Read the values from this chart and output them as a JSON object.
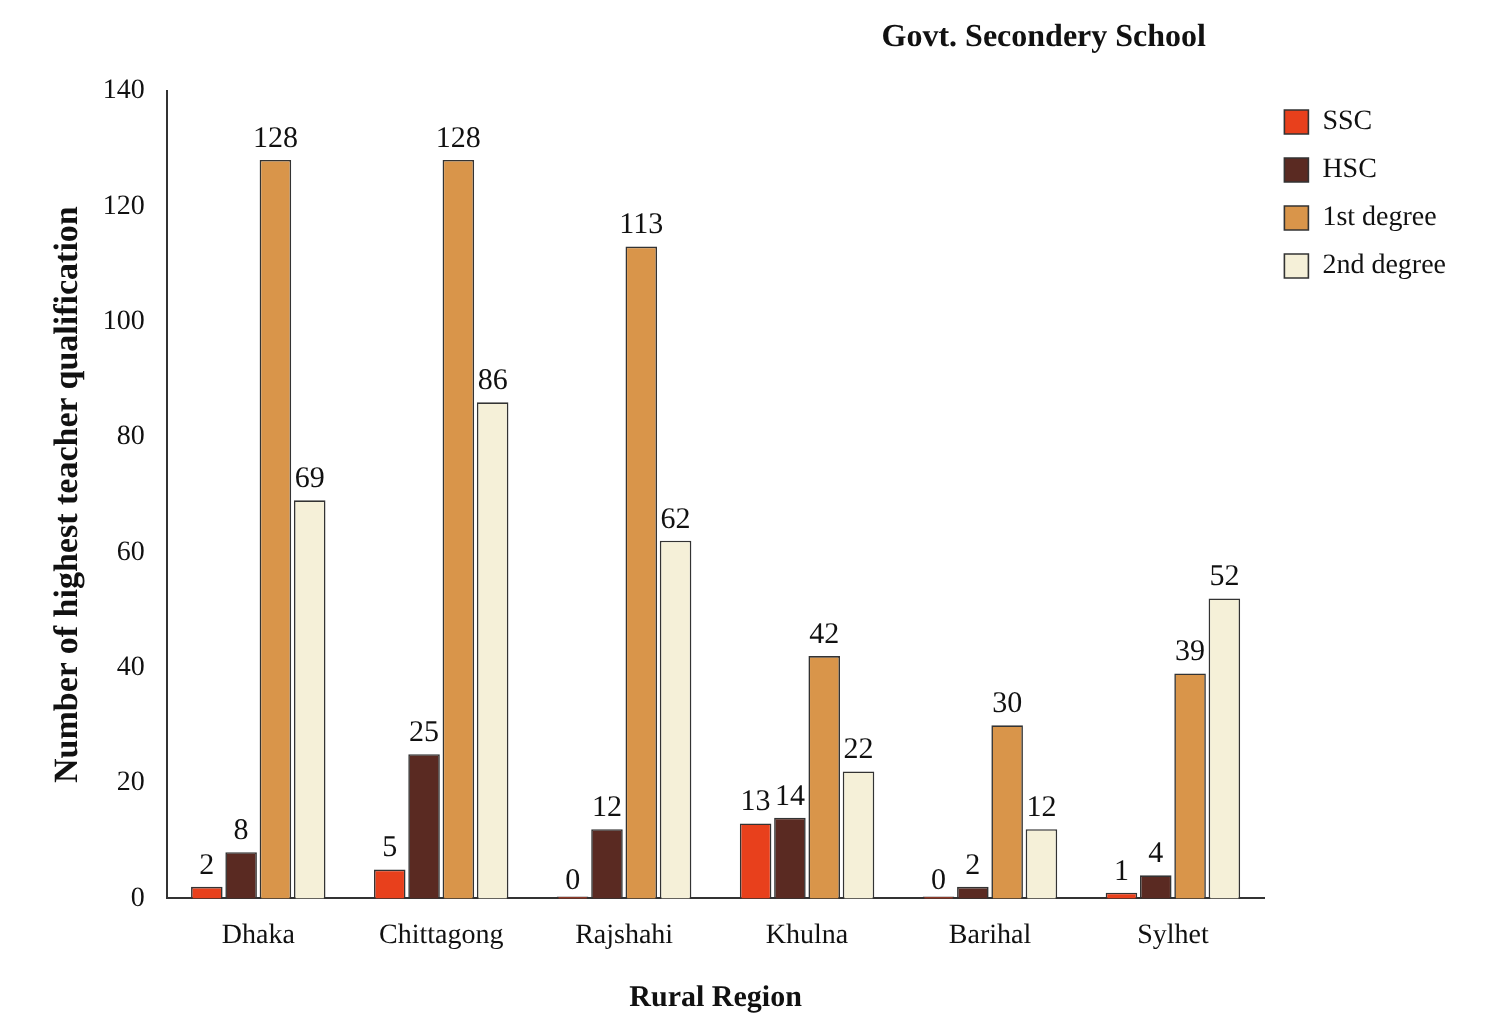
{
  "chart_data": {
    "type": "bar",
    "title": "Govt. Secondery School",
    "xlabel": "Rural Region",
    "ylabel": "Number of highest teacher qualification",
    "categories": [
      "Dhaka",
      "Chittagong",
      "Rajshahi",
      "Khulna",
      "Barihal",
      "Sylhet"
    ],
    "series": [
      {
        "name": "SSC",
        "color": "#e8401c",
        "values": [
          2,
          5,
          0,
          13,
          0,
          1
        ]
      },
      {
        "name": "HSC",
        "color": "#5a2a22",
        "values": [
          8,
          25,
          12,
          14,
          2,
          4
        ]
      },
      {
        "name": "1st degree",
        "color": "#d9954a",
        "values": [
          128,
          128,
          113,
          42,
          30,
          39
        ]
      },
      {
        "name": "2nd degree",
        "color": "#f5f0d8",
        "values": [
          69,
          86,
          62,
          22,
          12,
          52
        ]
      }
    ],
    "ylim": [
      0,
      140
    ],
    "yticks": [
      0,
      20,
      40,
      60,
      80,
      100,
      120,
      140
    ],
    "grid": false,
    "legend": "top right",
    "data_labels": true
  }
}
